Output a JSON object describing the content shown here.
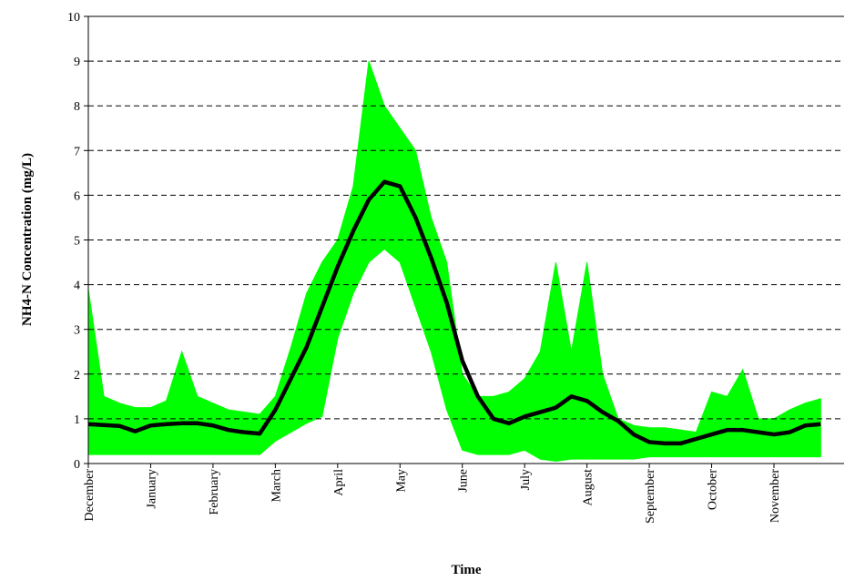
{
  "chart_data": {
    "type": "band-line",
    "y_label": "NH4-N Concentration (mg/L)",
    "x_label": "Time",
    "categories": [
      "December",
      null,
      null,
      null,
      "January",
      null,
      null,
      null,
      "February",
      null,
      null,
      null,
      "March",
      null,
      null,
      null,
      "April",
      null,
      null,
      null,
      "May",
      null,
      null,
      null,
      "June",
      null,
      null,
      null,
      "July",
      null,
      null,
      null,
      "August",
      null,
      null,
      null,
      "September",
      null,
      null,
      null,
      "October",
      null,
      null,
      null,
      "November",
      null,
      null,
      null
    ],
    "band": {
      "color": "#00ff00",
      "upper": [
        3.9,
        1.5,
        1.35,
        1.25,
        1.25,
        1.4,
        2.5,
        1.5,
        1.35,
        1.2,
        1.15,
        1.1,
        1.5,
        2.6,
        3.8,
        4.5,
        5.0,
        6.2,
        9.0,
        8.0,
        7.5,
        7.0,
        5.5,
        4.5,
        2.0,
        1.5,
        1.5,
        1.6,
        1.9,
        2.5,
        4.5,
        2.5,
        4.5,
        2.0,
        1.0,
        0.85,
        0.8,
        0.8,
        0.75,
        0.7,
        1.6,
        1.5,
        2.1,
        1.0,
        1.0,
        1.2,
        1.35,
        1.45
      ],
      "lower": [
        0.2,
        0.2,
        0.2,
        0.2,
        0.2,
        0.2,
        0.2,
        0.2,
        0.2,
        0.2,
        0.2,
        0.2,
        0.5,
        0.7,
        0.9,
        1.05,
        2.8,
        3.8,
        4.5,
        4.8,
        4.5,
        3.5,
        2.5,
        1.2,
        0.3,
        0.2,
        0.2,
        0.2,
        0.3,
        0.1,
        0.05,
        0.1,
        0.1,
        0.1,
        0.1,
        0.1,
        0.15,
        0.15,
        0.15,
        0.15,
        0.15,
        0.15,
        0.15,
        0.15,
        0.15,
        0.15,
        0.15,
        0.15
      ]
    },
    "series": [
      {
        "color": "#000000",
        "values": [
          0.88,
          0.86,
          0.84,
          0.72,
          0.85,
          0.88,
          0.9,
          0.9,
          0.85,
          0.75,
          0.7,
          0.67,
          1.2,
          1.9,
          2.6,
          3.5,
          4.4,
          5.2,
          5.9,
          6.3,
          6.2,
          5.5,
          4.6,
          3.6,
          2.3,
          1.5,
          1.0,
          0.9,
          1.05,
          1.15,
          1.25,
          1.5,
          1.4,
          1.15,
          0.95,
          0.65,
          0.48,
          0.45,
          0.45,
          0.55,
          0.65,
          0.75,
          0.75,
          0.7,
          0.65,
          0.7,
          0.85,
          0.88
        ]
      }
    ],
    "ylim": [
      0,
      10
    ],
    "yticks": [
      0,
      1,
      2,
      3,
      4,
      5,
      6,
      7,
      8,
      9,
      10
    ],
    "grid": true
  }
}
